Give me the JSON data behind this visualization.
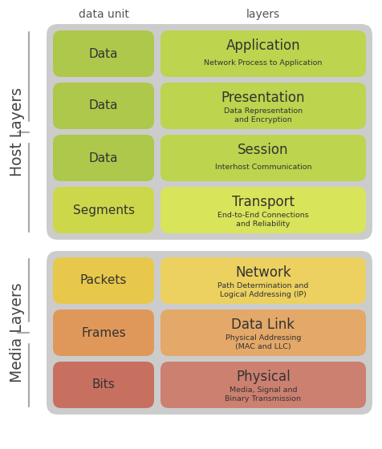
{
  "title_col1": "data unit",
  "title_col2": "layers",
  "fig_bg": "#ffffff",
  "layers": [
    {
      "data_unit": "Data",
      "layer_name": "Application",
      "layer_sub": "Network Process to Application",
      "du_color": "#adc84a",
      "layer_color": "#bcd44e",
      "group": "host"
    },
    {
      "data_unit": "Data",
      "layer_name": "Presentation",
      "layer_sub": "Data Representation\nand Encryption",
      "du_color": "#adc84a",
      "layer_color": "#bcd44e",
      "group": "host"
    },
    {
      "data_unit": "Data",
      "layer_name": "Session",
      "layer_sub": "Interhost Communication",
      "du_color": "#adc84a",
      "layer_color": "#bcd44e",
      "group": "host"
    },
    {
      "data_unit": "Segments",
      "layer_name": "Transport",
      "layer_sub": "End-to-End Connections\nand Reliability",
      "du_color": "#ccd84a",
      "layer_color": "#d8e45a",
      "group": "host"
    },
    {
      "data_unit": "Packets",
      "layer_name": "Network",
      "layer_sub": "Path Determination and\nLogical Addressing (IP)",
      "du_color": "#e8c84a",
      "layer_color": "#ecd060",
      "group": "media"
    },
    {
      "data_unit": "Frames",
      "layer_name": "Data Link",
      "layer_sub": "Physical Addressing\n(MAC and LLC)",
      "du_color": "#e0985a",
      "layer_color": "#e4a868",
      "group": "media"
    },
    {
      "data_unit": "Bits",
      "layer_name": "Physical",
      "layer_sub": "Media, Signal and\nBinary Transmission",
      "du_color": "#c87060",
      "layer_color": "#cc8070",
      "group": "media"
    }
  ],
  "host_label": "Host Layers",
  "media_label": "Media Layers",
  "group_bg": "#cccccc",
  "brace_color": "#aaaaaa",
  "text_color": "#333333",
  "header_color": "#555555"
}
